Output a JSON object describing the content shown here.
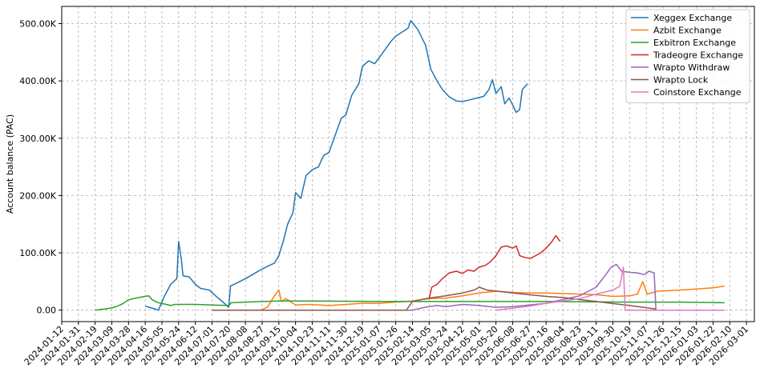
{
  "chart_data": {
    "type": "line",
    "title": "",
    "xlabel": "",
    "ylabel": "Account balance (PAC)",
    "ylim": [
      -20000,
      530000
    ],
    "xlim": [
      "2024-01-12",
      "2026-03-10"
    ],
    "grid": true,
    "legend_position": "top-right",
    "x_ticks": [
      "2024-01-12",
      "2024-01-31",
      "2024-02-19",
      "2024-03-09",
      "2024-03-28",
      "2024-04-16",
      "2024-05-05",
      "2024-05-24",
      "2024-06-12",
      "2024-07-01",
      "2024-07-20",
      "2024-08-08",
      "2024-08-27",
      "2024-09-15",
      "2024-10-04",
      "2024-10-23",
      "2024-11-11",
      "2024-11-30",
      "2024-12-19",
      "2025-01-07",
      "2025-01-26",
      "2025-02-14",
      "2025-03-05",
      "2025-03-24",
      "2025-04-12",
      "2025-05-01",
      "2025-05-20",
      "2025-06-08",
      "2025-06-27",
      "2025-07-16",
      "2025-08-04",
      "2025-08-23",
      "2025-09-11",
      "2025-09-30",
      "2025-10-19",
      "2025-11-07",
      "2025-11-26",
      "2025-12-15",
      "2026-01-03",
      "2026-01-22",
      "2026-02-10",
      "2026-03-01"
    ],
    "y_ticks": [
      0,
      100000,
      200000,
      300000,
      400000,
      500000
    ],
    "y_tick_labels": [
      "0.00",
      "100.00K",
      "200.00K",
      "300.00K",
      "400.00K",
      "500.00K"
    ],
    "series": [
      {
        "name": "Xeggex Exchange",
        "color": "#1f77b4",
        "points": [
          [
            "2024-04-16",
            7000
          ],
          [
            "2024-04-25",
            3000
          ],
          [
            "2024-05-01",
            0
          ],
          [
            "2024-05-08",
            25000
          ],
          [
            "2024-05-15",
            45000
          ],
          [
            "2024-05-22",
            55000
          ],
          [
            "2024-05-24",
            120000
          ],
          [
            "2024-05-27",
            90000
          ],
          [
            "2024-05-29",
            60000
          ],
          [
            "2024-06-05",
            58000
          ],
          [
            "2024-06-12",
            45000
          ],
          [
            "2024-06-18",
            38000
          ],
          [
            "2024-06-28",
            35000
          ],
          [
            "2024-07-05",
            25000
          ],
          [
            "2024-07-15",
            12000
          ],
          [
            "2024-07-20",
            5000
          ],
          [
            "2024-07-22",
            42000
          ],
          [
            "2024-07-30",
            48000
          ],
          [
            "2024-08-08",
            55000
          ],
          [
            "2024-08-16",
            62000
          ],
          [
            "2024-08-25",
            70000
          ],
          [
            "2024-09-04",
            78000
          ],
          [
            "2024-09-10",
            82000
          ],
          [
            "2024-09-15",
            95000
          ],
          [
            "2024-09-20",
            120000
          ],
          [
            "2024-09-25",
            150000
          ],
          [
            "2024-10-01",
            170000
          ],
          [
            "2024-10-04",
            205000
          ],
          [
            "2024-10-10",
            195000
          ],
          [
            "2024-10-16",
            235000
          ],
          [
            "2024-10-23",
            245000
          ],
          [
            "2024-10-30",
            250000
          ],
          [
            "2024-11-05",
            270000
          ],
          [
            "2024-11-11",
            275000
          ],
          [
            "2024-11-18",
            305000
          ],
          [
            "2024-11-25",
            335000
          ],
          [
            "2024-11-30",
            340000
          ],
          [
            "2024-12-07",
            375000
          ],
          [
            "2024-12-15",
            395000
          ],
          [
            "2024-12-19",
            425000
          ],
          [
            "2024-12-26",
            435000
          ],
          [
            "2025-01-02",
            430000
          ],
          [
            "2025-01-07",
            440000
          ],
          [
            "2025-01-14",
            455000
          ],
          [
            "2025-01-20",
            468000
          ],
          [
            "2025-01-26",
            478000
          ],
          [
            "2025-02-02",
            485000
          ],
          [
            "2025-02-09",
            492000
          ],
          [
            "2025-02-12",
            505000
          ],
          [
            "2025-02-20",
            490000
          ],
          [
            "2025-03-01",
            462000
          ],
          [
            "2025-03-07",
            420000
          ],
          [
            "2025-03-14",
            400000
          ],
          [
            "2025-03-20",
            385000
          ],
          [
            "2025-03-28",
            372000
          ],
          [
            "2025-04-05",
            365000
          ],
          [
            "2025-04-12",
            364000
          ],
          [
            "2025-04-20",
            367000
          ],
          [
            "2025-04-28",
            370000
          ],
          [
            "2025-05-06",
            373000
          ],
          [
            "2025-05-12",
            385000
          ],
          [
            "2025-05-16",
            402000
          ],
          [
            "2025-05-20",
            378000
          ],
          [
            "2025-05-26",
            390000
          ],
          [
            "2025-05-30",
            360000
          ],
          [
            "2025-06-04",
            370000
          ],
          [
            "2025-06-08",
            358000
          ],
          [
            "2025-06-12",
            345000
          ],
          [
            "2025-06-16",
            350000
          ],
          [
            "2025-06-19",
            385000
          ],
          [
            "2025-06-25",
            395000
          ]
        ]
      },
      {
        "name": "Azbit Exchange",
        "color": "#ff7f0e",
        "points": [
          [
            "2024-08-25",
            0
          ],
          [
            "2024-09-02",
            5000
          ],
          [
            "2024-09-10",
            25000
          ],
          [
            "2024-09-15",
            35000
          ],
          [
            "2024-09-18",
            15000
          ],
          [
            "2024-09-23",
            20000
          ],
          [
            "2024-09-28",
            15000
          ],
          [
            "2024-10-04",
            9000
          ],
          [
            "2024-10-20",
            10000
          ],
          [
            "2024-11-11",
            8000
          ],
          [
            "2024-12-01",
            10000
          ],
          [
            "2024-12-19",
            12000
          ],
          [
            "2025-01-07",
            12000
          ],
          [
            "2025-01-26",
            14000
          ],
          [
            "2025-02-14",
            16000
          ],
          [
            "2025-03-05",
            20000
          ],
          [
            "2025-03-24",
            21000
          ],
          [
            "2025-04-12",
            25000
          ],
          [
            "2025-05-01",
            30000
          ],
          [
            "2025-05-20",
            33000
          ],
          [
            "2025-06-08",
            31000
          ],
          [
            "2025-06-27",
            30000
          ],
          [
            "2025-07-16",
            30000
          ],
          [
            "2025-08-04",
            29000
          ],
          [
            "2025-08-23",
            28000
          ],
          [
            "2025-09-11",
            27000
          ],
          [
            "2025-09-30",
            24000
          ],
          [
            "2025-10-19",
            25000
          ],
          [
            "2025-10-28",
            28000
          ],
          [
            "2025-11-03",
            50000
          ],
          [
            "2025-11-08",
            28000
          ],
          [
            "2025-11-20",
            33000
          ],
          [
            "2025-12-15",
            35000
          ],
          [
            "2026-01-03",
            37000
          ],
          [
            "2026-01-22",
            39000
          ],
          [
            "2026-02-04",
            42000
          ]
        ]
      },
      {
        "name": "Exbitron Exchange",
        "color": "#2ca02c",
        "points": [
          [
            "2024-02-19",
            0
          ],
          [
            "2024-03-01",
            2000
          ],
          [
            "2024-03-12",
            5000
          ],
          [
            "2024-03-20",
            10000
          ],
          [
            "2024-03-28",
            18000
          ],
          [
            "2024-04-05",
            21000
          ],
          [
            "2024-04-12",
            23000
          ],
          [
            "2024-04-20",
            25000
          ],
          [
            "2024-04-24",
            18000
          ],
          [
            "2024-05-01",
            13000
          ],
          [
            "2024-05-10",
            10000
          ],
          [
            "2024-05-15",
            8000
          ],
          [
            "2024-05-20",
            10000
          ],
          [
            "2024-06-12",
            10000
          ],
          [
            "2024-07-01",
            9000
          ],
          [
            "2024-07-20",
            8000
          ],
          [
            "2024-07-23",
            13000
          ],
          [
            "2024-08-27",
            15000
          ],
          [
            "2024-09-15",
            16000
          ],
          [
            "2024-10-23",
            16000
          ],
          [
            "2025-01-07",
            15000
          ],
          [
            "2025-04-12",
            15000
          ],
          [
            "2025-07-16",
            15000
          ],
          [
            "2025-10-19",
            14000
          ],
          [
            "2025-12-15",
            14000
          ],
          [
            "2026-02-04",
            13000
          ]
        ]
      },
      {
        "name": "Tradeogre Exchange",
        "color": "#d62728",
        "points": [
          [
            "2025-03-05",
            20000
          ],
          [
            "2025-03-08",
            40000
          ],
          [
            "2025-03-14",
            45000
          ],
          [
            "2025-03-20",
            55000
          ],
          [
            "2025-03-28",
            65000
          ],
          [
            "2025-04-05",
            68000
          ],
          [
            "2025-04-12",
            64000
          ],
          [
            "2025-04-18",
            70000
          ],
          [
            "2025-04-25",
            68000
          ],
          [
            "2025-05-01",
            75000
          ],
          [
            "2025-05-08",
            78000
          ],
          [
            "2025-05-14",
            85000
          ],
          [
            "2025-05-20",
            95000
          ],
          [
            "2025-05-26",
            110000
          ],
          [
            "2025-06-01",
            112000
          ],
          [
            "2025-06-08",
            108000
          ],
          [
            "2025-06-12",
            112000
          ],
          [
            "2025-06-16",
            95000
          ],
          [
            "2025-06-22",
            92000
          ],
          [
            "2025-06-28",
            90000
          ],
          [
            "2025-07-04",
            95000
          ],
          [
            "2025-07-10",
            100000
          ],
          [
            "2025-07-16",
            108000
          ],
          [
            "2025-07-22",
            118000
          ],
          [
            "2025-07-27",
            130000
          ],
          [
            "2025-08-01",
            120000
          ]
        ]
      },
      {
        "name": "Wrapto Withdraw",
        "color": "#9467bd",
        "points": [
          [
            "2024-07-01",
            0
          ],
          [
            "2024-08-08",
            0
          ],
          [
            "2024-10-04",
            0
          ],
          [
            "2024-12-19",
            0
          ],
          [
            "2025-02-14",
            0
          ],
          [
            "2025-02-28",
            5000
          ],
          [
            "2025-03-14",
            8000
          ],
          [
            "2025-03-24",
            6000
          ],
          [
            "2025-04-12",
            10000
          ],
          [
            "2025-05-01",
            8000
          ],
          [
            "2025-05-20",
            5000
          ],
          [
            "2025-06-08",
            6000
          ],
          [
            "2025-07-16",
            12000
          ],
          [
            "2025-08-23",
            25000
          ],
          [
            "2025-09-11",
            40000
          ],
          [
            "2025-09-21",
            60000
          ],
          [
            "2025-09-28",
            75000
          ],
          [
            "2025-10-04",
            80000
          ],
          [
            "2025-10-10",
            68000
          ],
          [
            "2025-10-19",
            66000
          ],
          [
            "2025-10-28",
            65000
          ],
          [
            "2025-11-05",
            62000
          ],
          [
            "2025-11-10",
            68000
          ],
          [
            "2025-11-16",
            65000
          ],
          [
            "2025-11-18",
            0
          ]
        ]
      },
      {
        "name": "Wrapto Lock",
        "color": "#8c564b",
        "points": [
          [
            "2024-07-01",
            0
          ],
          [
            "2024-08-27",
            0
          ],
          [
            "2024-10-23",
            0
          ],
          [
            "2024-12-19",
            0
          ],
          [
            "2025-02-07",
            0
          ],
          [
            "2025-02-14",
            15000
          ],
          [
            "2025-03-01",
            20000
          ],
          [
            "2025-03-24",
            25000
          ],
          [
            "2025-04-12",
            30000
          ],
          [
            "2025-04-25",
            35000
          ],
          [
            "2025-05-01",
            40000
          ],
          [
            "2025-05-10",
            35000
          ],
          [
            "2025-06-08",
            30000
          ],
          [
            "2025-07-16",
            24000
          ],
          [
            "2025-08-04",
            22000
          ],
          [
            "2025-09-11",
            15000
          ],
          [
            "2025-10-19",
            8000
          ],
          [
            "2025-11-18",
            2000
          ]
        ]
      },
      {
        "name": "Coinstore Exchange",
        "color": "#e377c2",
        "points": [
          [
            "2025-05-20",
            0
          ],
          [
            "2025-06-27",
            7000
          ],
          [
            "2025-07-16",
            12000
          ],
          [
            "2025-08-04",
            16000
          ],
          [
            "2025-08-23",
            20000
          ],
          [
            "2025-09-11",
            28000
          ],
          [
            "2025-09-30",
            35000
          ],
          [
            "2025-10-08",
            42000
          ],
          [
            "2025-10-12",
            75000
          ],
          [
            "2025-10-14",
            0
          ],
          [
            "2025-11-26",
            0
          ],
          [
            "2026-01-03",
            0
          ],
          [
            "2026-02-04",
            0
          ]
        ]
      }
    ]
  }
}
